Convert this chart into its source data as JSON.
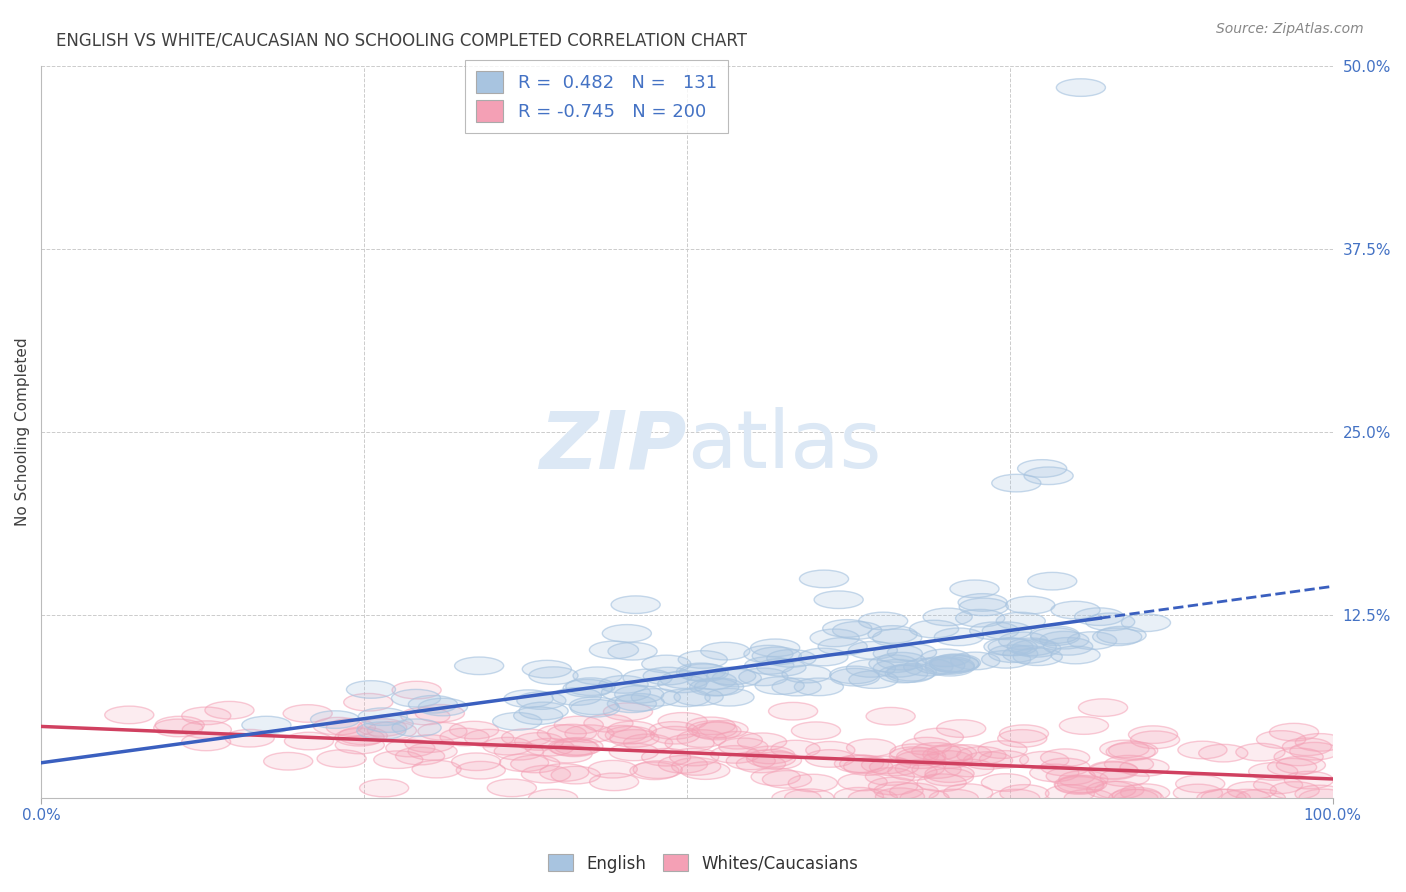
{
  "title": "ENGLISH VS WHITE/CAUCASIAN NO SCHOOLING COMPLETED CORRELATION CHART",
  "source": "Source: ZipAtlas.com",
  "ylabel": "No Schooling Completed",
  "xlim": [
    0,
    1.0
  ],
  "ylim": [
    0,
    0.5
  ],
  "ytick_vals": [
    0.0,
    0.125,
    0.25,
    0.375,
    0.5
  ],
  "ytick_labels": [
    "",
    "12.5%",
    "25.0%",
    "37.5%",
    "50.0%"
  ],
  "xtick_labels": [
    "0.0%",
    "100.0%"
  ],
  "legend_blue_r": "0.482",
  "legend_blue_n": "131",
  "legend_pink_r": "-0.745",
  "legend_pink_n": "200",
  "blue_scatter_color": "#a8c4e0",
  "pink_scatter_color": "#f4a0b5",
  "blue_line_color": "#3a5fbf",
  "pink_line_color": "#d04060",
  "axis_label_color": "#4472c4",
  "title_color": "#404040",
  "watermark_color": "#dce8f5",
  "grid_color": "#cccccc",
  "background_color": "#ffffff"
}
